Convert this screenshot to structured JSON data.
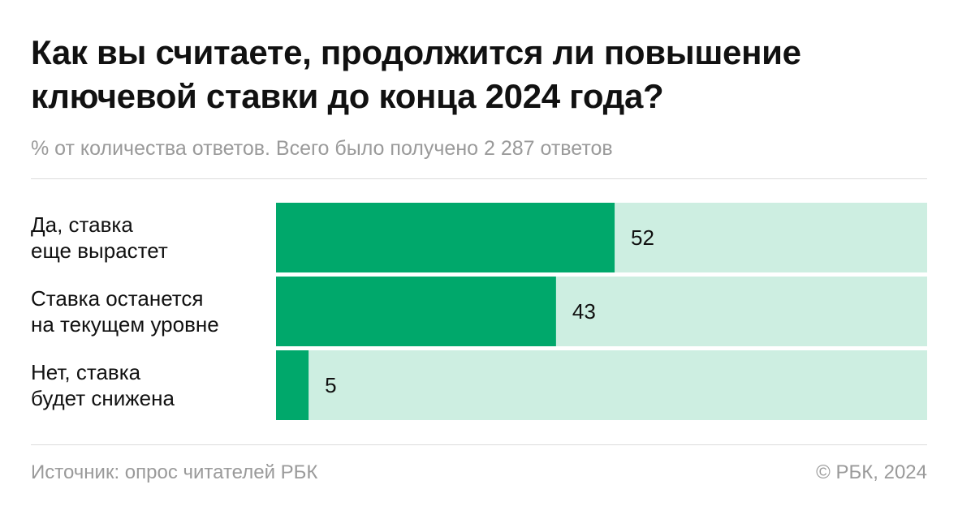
{
  "chart_data": {
    "type": "bar",
    "orientation": "horizontal",
    "title": "Как вы считаете, продолжится ли повышение ключевой ставки до конца 2024 года?",
    "subtitle": "% от количества ответов. Всего было получено 2 287 ответов",
    "categories": [
      [
        "Да, ставка",
        "еще вырастет"
      ],
      [
        "Ставка останется",
        "на текущем уровне"
      ],
      [
        "Нет, ставка",
        "будет снижена"
      ]
    ],
    "values": [
      52,
      43,
      5
    ],
    "xlim": [
      0,
      100
    ],
    "grid": false,
    "colors": {
      "bar": "#00a86b",
      "track": "#cdeee1"
    }
  },
  "footer": {
    "source": "Источник: опрос читателей РБК",
    "copyright": "© РБК, 2024"
  }
}
